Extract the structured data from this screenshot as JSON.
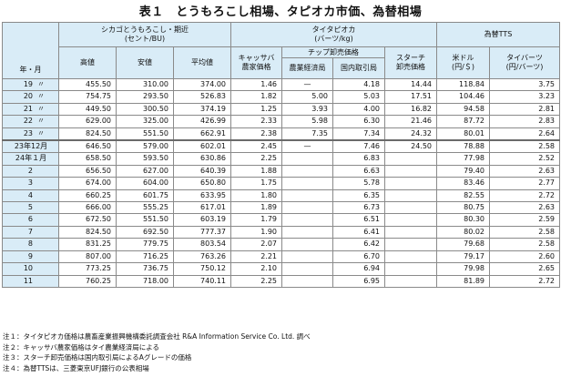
{
  "title": "表１　とうもろこし相場、タピオカ市価、為替相場",
  "headers": {
    "corn_group": "シカゴとうもろこし・期近",
    "corn_unit": "(セント/BU)",
    "tapioca_group": "タイタピオカ",
    "tapioca_unit": "(バーツ/kg)",
    "fx_group": "為替TTS",
    "year_month": "年・月",
    "high": "高値",
    "low": "安値",
    "avg": "平均値",
    "cassava_l1": "キャッサバ",
    "cassava_l2": "農家価格",
    "chip_group": "チップ卸売価格",
    "chip_moae": "農業経済局",
    "chip_domestic": "国内取引局",
    "starch_l1": "スターチ",
    "starch_l2": "卸売価格",
    "usd_l1": "米ドル",
    "usd_l2": "(円/＄)",
    "baht_l1": "タイバーツ",
    "baht_l2": "(円/バーツ)"
  },
  "rows_annual": [
    {
      "year": "19",
      "mark": "〃",
      "high": "455.50",
      "low": "310.00",
      "avg": "374.00",
      "cassava": "1.46",
      "chip_moae": "—",
      "chip_domestic": "4.18",
      "starch": "14.44",
      "usd": "118.84",
      "baht": "3.75"
    },
    {
      "year": "20",
      "mark": "〃",
      "high": "754.75",
      "low": "293.50",
      "avg": "526.83",
      "cassava": "1.82",
      "chip_moae": "5.00",
      "chip_domestic": "5.03",
      "starch": "17.51",
      "usd": "104.46",
      "baht": "3.23"
    },
    {
      "year": "21",
      "mark": "〃",
      "high": "449.50",
      "low": "300.50",
      "avg": "374.19",
      "cassava": "1.25",
      "chip_moae": "3.93",
      "chip_domestic": "4.00",
      "starch": "16.82",
      "usd": "94.58",
      "baht": "2.81"
    },
    {
      "year": "22",
      "mark": "〃",
      "high": "629.00",
      "low": "325.00",
      "avg": "426.99",
      "cassava": "2.33",
      "chip_moae": "5.98",
      "chip_domestic": "6.30",
      "starch": "21.46",
      "usd": "87.72",
      "baht": "2.83"
    },
    {
      "year": "23",
      "mark": "〃",
      "high": "824.50",
      "low": "551.50",
      "avg": "662.91",
      "cassava": "2.38",
      "chip_moae": "7.35",
      "chip_domestic": "7.34",
      "starch": "24.32",
      "usd": "80.01",
      "baht": "2.64"
    }
  ],
  "rows_monthly": [
    {
      "label": "23年12月",
      "high": "646.50",
      "low": "579.00",
      "avg": "602.01",
      "cassava": "2.45",
      "chip_moae": "—",
      "chip_domestic": "7.46",
      "starch": "24.50",
      "usd": "78.88",
      "baht": "2.58"
    },
    {
      "label": "24年１月",
      "high": "658.50",
      "low": "593.50",
      "avg": "630.86",
      "cassava": "2.25",
      "chip_moae": "",
      "chip_domestic": "6.83",
      "starch": "",
      "usd": "77.98",
      "baht": "2.52"
    },
    {
      "month": "2",
      "high": "656.50",
      "low": "627.00",
      "avg": "640.39",
      "cassava": "1.88",
      "chip_moae": "",
      "chip_domestic": "6.63",
      "starch": "",
      "usd": "79.40",
      "baht": "2.63"
    },
    {
      "month": "3",
      "high": "674.00",
      "low": "604.00",
      "avg": "650.80",
      "cassava": "1.75",
      "chip_moae": "",
      "chip_domestic": "5.78",
      "starch": "",
      "usd": "83.46",
      "baht": "2.77"
    },
    {
      "month": "4",
      "high": "660.25",
      "low": "601.75",
      "avg": "633.95",
      "cassava": "1.80",
      "chip_moae": "",
      "chip_domestic": "6.35",
      "starch": "",
      "usd": "82.55",
      "baht": "2.72"
    },
    {
      "month": "5",
      "high": "666.00",
      "low": "555.25",
      "avg": "617.01",
      "cassava": "1.89",
      "chip_moae": "",
      "chip_domestic": "6.73",
      "starch": "",
      "usd": "80.75",
      "baht": "2.63"
    },
    {
      "month": "6",
      "high": "672.50",
      "low": "551.50",
      "avg": "603.19",
      "cassava": "1.79",
      "chip_moae": "",
      "chip_domestic": "6.51",
      "starch": "",
      "usd": "80.30",
      "baht": "2.59"
    },
    {
      "month": "7",
      "high": "824.50",
      "low": "692.50",
      "avg": "777.37",
      "cassava": "1.90",
      "chip_moae": "",
      "chip_domestic": "6.41",
      "starch": "",
      "usd": "80.02",
      "baht": "2.58"
    },
    {
      "month": "8",
      "high": "831.25",
      "low": "779.75",
      "avg": "803.54",
      "cassava": "2.07",
      "chip_moae": "",
      "chip_domestic": "6.42",
      "starch": "",
      "usd": "79.68",
      "baht": "2.58"
    },
    {
      "month": "9",
      "high": "807.00",
      "low": "716.25",
      "avg": "763.26",
      "cassava": "2.21",
      "chip_moae": "",
      "chip_domestic": "6.70",
      "starch": "",
      "usd": "79.17",
      "baht": "2.60"
    },
    {
      "month": "10",
      "high": "773.25",
      "low": "736.75",
      "avg": "750.12",
      "cassava": "2.10",
      "chip_moae": "",
      "chip_domestic": "6.94",
      "starch": "",
      "usd": "79.98",
      "baht": "2.65"
    },
    {
      "month": "11",
      "high": "760.25",
      "low": "718.00",
      "avg": "740.11",
      "cassava": "2.25",
      "chip_moae": "",
      "chip_domestic": "6.95",
      "starch": "",
      "usd": "81.89",
      "baht": "2.72"
    }
  ],
  "notes": [
    "注１：タイタピオカ価格は農畜産業振興機構委託調査会社 R&A Information Service Co. Ltd. 調べ",
    "注２：キャッサバ農家価格はタイ農業経済局による",
    "注３：スターチ卸売価格は国内取引局によるAグレードの価格",
    "注４：為替TTSは、三菱東京UFJ銀行の公表相場"
  ],
  "colors": {
    "header_bg": "#d9ecf7",
    "border": "#8a8a8a"
  }
}
